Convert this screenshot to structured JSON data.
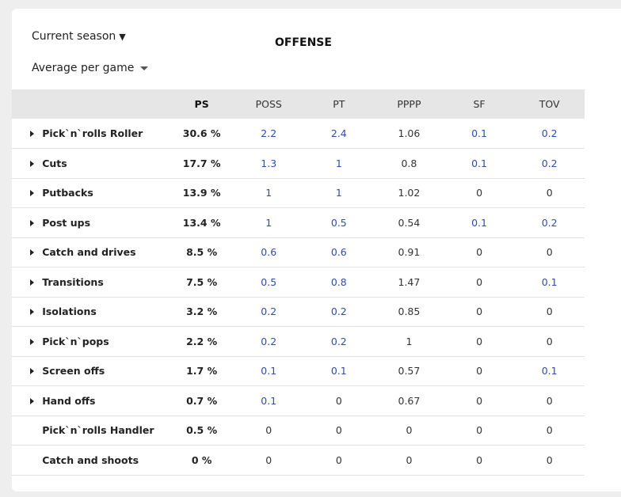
{
  "filters": {
    "season": "Current season",
    "mode": "Average per game"
  },
  "section_title": "OFFENSE",
  "columns": [
    "PS",
    "POSS",
    "PT",
    "PPPP",
    "SF",
    "TOV"
  ],
  "link_color": "#2e4bb0",
  "rows": [
    {
      "name": "Pick`n`rolls Roller",
      "expandable": true,
      "ps": "30.6 %",
      "poss": "2.2",
      "pt": "2.4",
      "pppp": "1.06",
      "sf": "0.1",
      "tov": "0.2"
    },
    {
      "name": "Cuts",
      "expandable": true,
      "ps": "17.7 %",
      "poss": "1.3",
      "pt": "1",
      "pppp": "0.8",
      "sf": "0.1",
      "tov": "0.2"
    },
    {
      "name": "Putbacks",
      "expandable": true,
      "ps": "13.9 %",
      "poss": "1",
      "pt": "1",
      "pppp": "1.02",
      "sf": "0",
      "tov": "0"
    },
    {
      "name": "Post ups",
      "expandable": true,
      "ps": "13.4 %",
      "poss": "1",
      "pt": "0.5",
      "pppp": "0.54",
      "sf": "0.1",
      "tov": "0.2"
    },
    {
      "name": "Catch and drives",
      "expandable": true,
      "ps": "8.5 %",
      "poss": "0.6",
      "pt": "0.6",
      "pppp": "0.91",
      "sf": "0",
      "tov": "0"
    },
    {
      "name": "Transitions",
      "expandable": true,
      "ps": "7.5 %",
      "poss": "0.5",
      "pt": "0.8",
      "pppp": "1.47",
      "sf": "0",
      "tov": "0.1"
    },
    {
      "name": "Isolations",
      "expandable": true,
      "ps": "3.2 %",
      "poss": "0.2",
      "pt": "0.2",
      "pppp": "0.85",
      "sf": "0",
      "tov": "0"
    },
    {
      "name": "Pick`n`pops",
      "expandable": true,
      "ps": "2.2 %",
      "poss": "0.2",
      "pt": "0.2",
      "pppp": "1",
      "sf": "0",
      "tov": "0"
    },
    {
      "name": "Screen offs",
      "expandable": true,
      "ps": "1.7 %",
      "poss": "0.1",
      "pt": "0.1",
      "pppp": "0.57",
      "sf": "0",
      "tov": "0.1"
    },
    {
      "name": "Hand offs",
      "expandable": true,
      "ps": "0.7 %",
      "poss": "0.1",
      "pt": "0",
      "pppp": "0.67",
      "sf": "0",
      "tov": "0"
    },
    {
      "name": "Pick`n`rolls Handler",
      "expandable": false,
      "ps": "0.5 %",
      "poss": "0",
      "pt": "0",
      "pppp": "0",
      "sf": "0",
      "tov": "0"
    },
    {
      "name": "Catch and shoots",
      "expandable": false,
      "ps": "0 %",
      "poss": "0",
      "pt": "0",
      "pppp": "0",
      "sf": "0",
      "tov": "0"
    }
  ]
}
